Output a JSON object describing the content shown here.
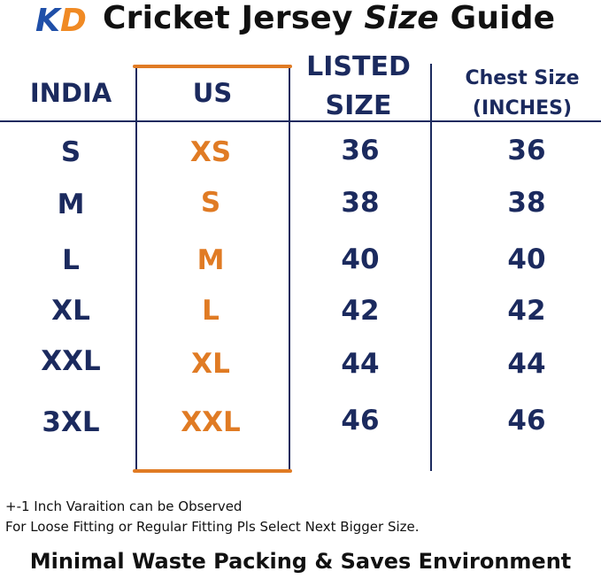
{
  "brand": {
    "logo_text": "KD",
    "logo_colors": {
      "k": "#1f4fa8",
      "d": "#f08a24"
    }
  },
  "title": {
    "part1": "Cricket Jersey ",
    "part2": "Size",
    "part3": " Guide"
  },
  "table": {
    "headers": {
      "india": "INDIA",
      "us": "US",
      "listed_line1": "LISTED",
      "listed_line2": "SIZE",
      "chest_line1": "Chest Size",
      "chest_line2": "(INCHES)"
    },
    "rows": [
      {
        "india": "S",
        "us": "XS",
        "listed": "36",
        "chest": "36"
      },
      {
        "india": "M",
        "us": "S",
        "listed": "38",
        "chest": "38"
      },
      {
        "india": "L",
        "us": "M",
        "listed": "40",
        "chest": "40"
      },
      {
        "india": "XL",
        "us": "L",
        "listed": "42",
        "chest": "42"
      },
      {
        "india": "XXL",
        "us": "XL",
        "listed": "44",
        "chest": "44"
      },
      {
        "india": "3XL",
        "us": "XXL",
        "listed": "46",
        "chest": "46"
      }
    ]
  },
  "notes": {
    "line1": "+-1 Inch Varaition can be Observed",
    "line2": "For Loose Fitting or Regular Fitting Pls Select Next Bigger Size."
  },
  "footer": "Minimal Waste Packing & Saves Environment",
  "colors": {
    "navy": "#1b2a5e",
    "orange": "#e07b24"
  }
}
